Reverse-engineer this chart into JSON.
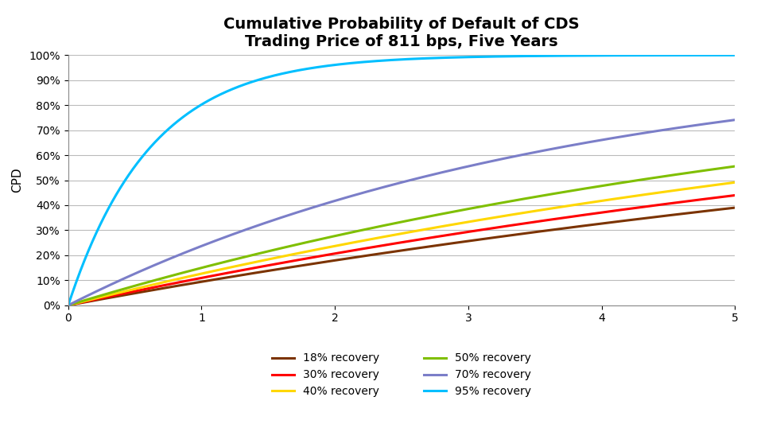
{
  "title_line1": "Cumulative Probability of Default of CDS",
  "title_line2": "Trading Price of 811 bps, Five Years",
  "ylabel": "CPD",
  "xlabel": "",
  "spread_bps": 811,
  "recoveries": [
    0.18,
    0.3,
    0.4,
    0.5,
    0.7,
    0.95
  ],
  "labels": [
    "18% recovery",
    "30% recovery",
    "40% recovery",
    "50% recovery",
    "70% recovery",
    "95% recovery"
  ],
  "colors": [
    "#7B3300",
    "#FF0000",
    "#FFD700",
    "#7FBF00",
    "#7B7EC8",
    "#00BFFF"
  ],
  "xlim": [
    0,
    5
  ],
  "ylim": [
    0,
    1.0
  ],
  "yticks": [
    0.0,
    0.1,
    0.2,
    0.3,
    0.4,
    0.5,
    0.6,
    0.7,
    0.8,
    0.9,
    1.0
  ],
  "xticks": [
    0,
    1,
    2,
    3,
    4,
    5
  ],
  "background_color": "#FFFFFF",
  "grid_color": "#BBBBBB",
  "title_fontsize": 14,
  "axis_label_fontsize": 11,
  "legend_fontsize": 10,
  "line_width": 2.2
}
